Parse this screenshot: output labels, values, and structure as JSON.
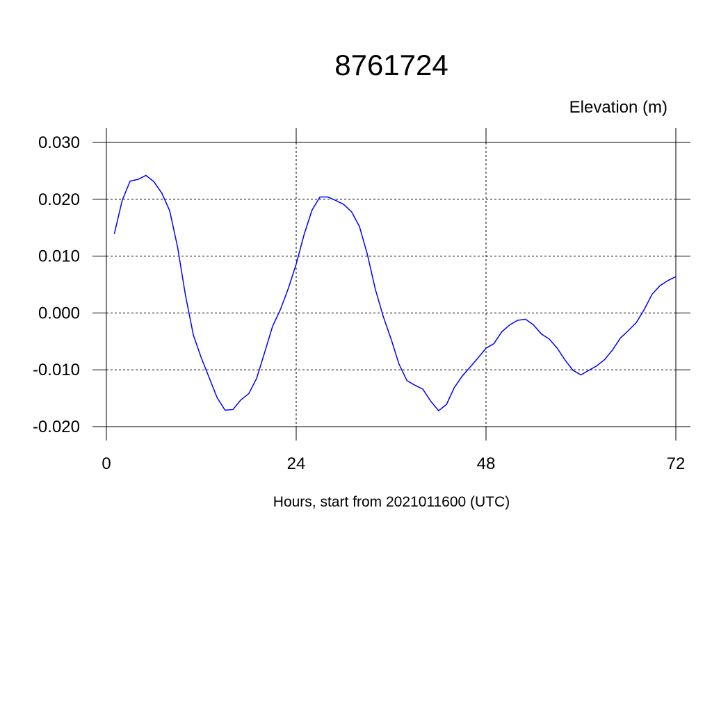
{
  "chart_data": {
    "type": "line",
    "title": "8761724",
    "y_label": "Elevation (m)",
    "x_label": "Hours, start from 2021011600 (UTC)",
    "x": [
      1,
      2,
      3,
      4,
      5,
      6,
      7,
      8,
      9,
      10,
      11,
      12,
      13,
      14,
      15,
      16,
      17,
      18,
      19,
      20,
      21,
      22,
      23,
      24,
      25,
      26,
      27,
      28,
      29,
      30,
      31,
      32,
      33,
      34,
      35,
      36,
      37,
      38,
      39,
      40,
      41,
      42,
      43,
      44,
      45,
      46,
      47,
      48,
      49,
      50,
      51,
      52,
      53,
      54,
      55,
      56,
      57,
      58,
      59,
      60,
      61,
      62,
      63,
      64,
      65,
      66,
      67,
      68,
      69,
      70,
      71,
      72
    ],
    "series": [
      {
        "name": "Elevation",
        "color": "#0000ff",
        "values": [
          0.0139,
          0.0198,
          0.0232,
          0.0235,
          0.0242,
          0.0231,
          0.0211,
          0.018,
          0.0116,
          0.0031,
          -0.0039,
          -0.0079,
          -0.0114,
          -0.0149,
          -0.0171,
          -0.017,
          -0.0153,
          -0.0142,
          -0.0115,
          -0.007,
          -0.0024,
          0.0006,
          0.0043,
          0.0086,
          0.0138,
          0.0181,
          0.0204,
          0.0204,
          0.0198,
          0.0191,
          0.0178,
          0.0152,
          0.0103,
          0.0042,
          -0.0006,
          -0.0046,
          -0.009,
          -0.0119,
          -0.0127,
          -0.0134,
          -0.0155,
          -0.0172,
          -0.0161,
          -0.0131,
          -0.0111,
          -0.0095,
          -0.0079,
          -0.0062,
          -0.0054,
          -0.0033,
          -0.0021,
          -0.0013,
          -0.0011,
          -0.0021,
          -0.0037,
          -0.0046,
          -0.0062,
          -0.0083,
          -0.0101,
          -0.0109,
          -0.0101,
          -0.0093,
          -0.0082,
          -0.0065,
          -0.0044,
          -0.0031,
          -0.0017,
          0.0006,
          0.0033,
          0.0048,
          0.0057,
          0.0064
        ]
      }
    ],
    "xlim": [
      0,
      72
    ],
    "xticks": [
      0,
      24,
      48,
      72
    ],
    "ylim": [
      -0.02,
      0.03
    ],
    "yticks": [
      {
        "value": -0.02,
        "label": "-0.020"
      },
      {
        "value": -0.01,
        "label": "-0.010"
      },
      {
        "value": 0,
        "label": "0.000"
      },
      {
        "value": 0.01,
        "label": "0.010"
      },
      {
        "value": 0.02,
        "label": "0.020"
      },
      {
        "value": 0.03,
        "label": "0.030"
      }
    ],
    "grid": true
  }
}
